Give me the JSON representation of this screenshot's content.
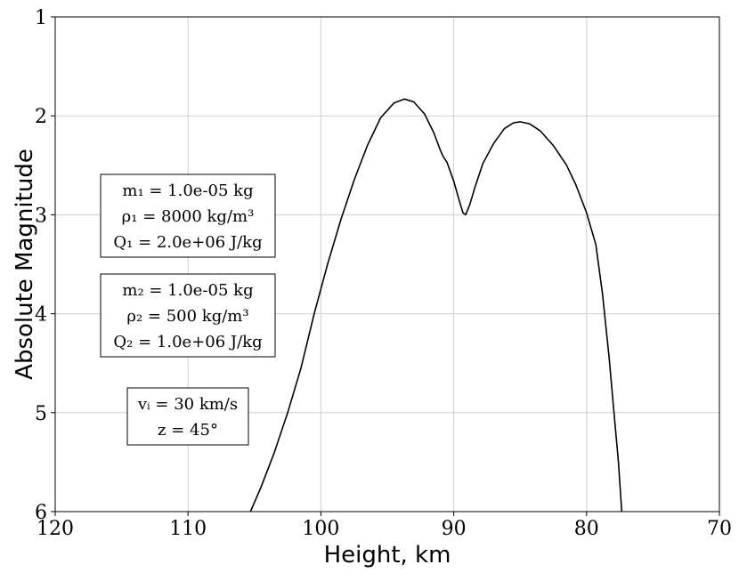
{
  "chart_data": {
    "type": "line",
    "xlabel": "Height, km",
    "ylabel": "Absolute Magnitude",
    "xlim": [
      120,
      70
    ],
    "ylim": [
      1,
      6
    ],
    "y_inverted": true,
    "x_inverted": true,
    "grid": true,
    "xticks": [
      "120",
      "110",
      "100",
      "90",
      "80",
      "70"
    ],
    "yticks": [
      "1",
      "2",
      "3",
      "4",
      "5",
      "6"
    ],
    "series": [
      {
        "color": "#000000",
        "points": [
          [
            105.3,
            6.0
          ],
          [
            104.5,
            5.75
          ],
          [
            103.5,
            5.4
          ],
          [
            102.5,
            5.0
          ],
          [
            101.5,
            4.55
          ],
          [
            100.5,
            4.0
          ],
          [
            99.5,
            3.5
          ],
          [
            98.5,
            3.05
          ],
          [
            97.5,
            2.65
          ],
          [
            96.5,
            2.3
          ],
          [
            95.5,
            2.02
          ],
          [
            94.5,
            1.87
          ],
          [
            93.7,
            1.83
          ],
          [
            93.0,
            1.86
          ],
          [
            92.2,
            1.98
          ],
          [
            91.5,
            2.17
          ],
          [
            91.0,
            2.35
          ],
          [
            90.8,
            2.41
          ],
          [
            90.5,
            2.47
          ],
          [
            90.0,
            2.66
          ],
          [
            89.6,
            2.85
          ],
          [
            89.3,
            2.98
          ],
          [
            89.1,
            3.0
          ],
          [
            88.8,
            2.9
          ],
          [
            88.4,
            2.72
          ],
          [
            87.8,
            2.48
          ],
          [
            87.0,
            2.28
          ],
          [
            86.2,
            2.13
          ],
          [
            85.5,
            2.07
          ],
          [
            85.0,
            2.06
          ],
          [
            84.3,
            2.08
          ],
          [
            83.5,
            2.15
          ],
          [
            82.5,
            2.3
          ],
          [
            81.5,
            2.5
          ],
          [
            80.8,
            2.7
          ],
          [
            80.0,
            2.98
          ],
          [
            79.3,
            3.3
          ],
          [
            78.8,
            3.8
          ],
          [
            78.3,
            4.45
          ],
          [
            77.9,
            5.05
          ],
          [
            77.6,
            5.5
          ],
          [
            77.35,
            6.0
          ]
        ]
      }
    ],
    "annotations": [
      {
        "lines": [
          "m₁ = 1.0e-05 kg",
          "ρ₁ = 8000 kg/m³",
          "Q₁ = 2.0e+06 J/kg"
        ]
      },
      {
        "lines": [
          "m₂ = 1.0e-05 kg",
          "ρ₂ = 500 kg/m³",
          "Q₂ = 1.0e+06 J/kg"
        ]
      },
      {
        "lines": [
          "vᵢ = 30 km/s",
          "z = 45°"
        ]
      }
    ]
  }
}
